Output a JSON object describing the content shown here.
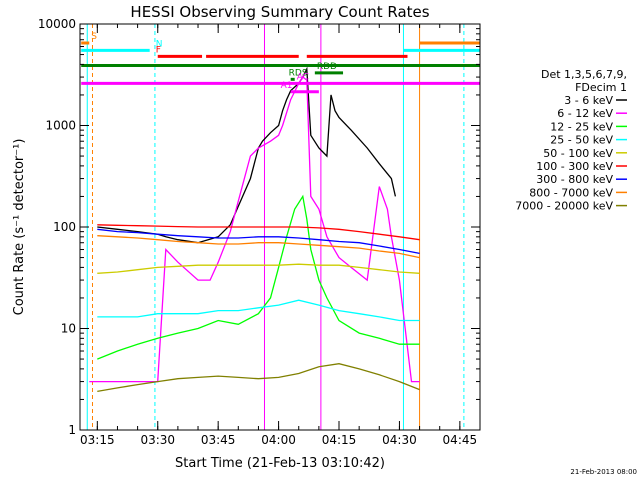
{
  "chart_data": {
    "type": "line",
    "title": "HESSI Observing Summary Count Rates",
    "xlabel": "Start Time (21-Feb-13 03:10:42)",
    "ylabel": "Count Rate (s⁻¹ detector⁻¹)",
    "ylog": true,
    "ylim": [
      1,
      10000
    ],
    "xlim_minutes": [
      190.7,
      290
    ],
    "x_ticks": [
      {
        "label": "03:15",
        "v": 195
      },
      {
        "label": "03:30",
        "v": 210
      },
      {
        "label": "03:45",
        "v": 225
      },
      {
        "label": "04:00",
        "v": 240
      },
      {
        "label": "04:15",
        "v": 255
      },
      {
        "label": "04:30",
        "v": 270
      },
      {
        "label": "04:45",
        "v": 285
      }
    ],
    "y_ticks": [
      {
        "label": "1",
        "v": 1
      },
      {
        "label": "10",
        "v": 10
      },
      {
        "label": "100",
        "v": 100
      },
      {
        "label": "1000",
        "v": 1000
      },
      {
        "label": "10000",
        "v": 10000
      }
    ],
    "legend_header": [
      "Det 1,3,5,6,7,9,",
      "FDecim 1"
    ],
    "series": [
      {
        "name": "3 - 6 keV",
        "color": "#000000",
        "x": [
          195,
          200,
          205,
          210,
          212,
          215,
          220,
          225,
          228,
          230,
          233,
          235,
          236,
          238,
          240,
          241,
          242,
          243,
          245,
          246,
          247,
          248,
          250,
          252,
          253,
          254,
          255,
          258,
          262,
          265,
          268,
          269
        ],
        "y": [
          100,
          95,
          90,
          85,
          80,
          75,
          70,
          80,
          105,
          160,
          300,
          600,
          700,
          850,
          1000,
          1400,
          1800,
          2200,
          2600,
          3000,
          3600,
          800,
          600,
          500,
          2000,
          1400,
          1200,
          900,
          600,
          420,
          300,
          200
        ]
      },
      {
        "name": "6 - 12 keV",
        "color": "#ff00ff",
        "x": [
          193,
          195,
          200,
          205,
          208,
          210,
          212,
          215,
          220,
          223,
          225,
          228,
          230,
          233,
          235,
          238,
          240,
          241,
          243,
          245,
          246,
          247,
          248,
          250,
          252,
          255,
          258,
          262,
          265,
          267,
          268,
          270,
          273,
          275
        ],
        "y": [
          3,
          3,
          3,
          3,
          3,
          3,
          60,
          45,
          30,
          30,
          45,
          90,
          180,
          500,
          600,
          700,
          800,
          1000,
          1800,
          2600,
          3000,
          2800,
          200,
          150,
          80,
          50,
          40,
          30,
          250,
          150,
          80,
          30,
          3,
          3
        ]
      },
      {
        "name": "12 - 25 keV",
        "color": "#00ff00",
        "x": [
          195,
          200,
          205,
          210,
          215,
          220,
          225,
          230,
          235,
          238,
          240,
          242,
          244,
          246,
          247,
          248,
          250,
          252,
          255,
          260,
          265,
          270,
          275
        ],
        "y": [
          5,
          6,
          7,
          8,
          9,
          10,
          12,
          11,
          14,
          20,
          40,
          80,
          150,
          200,
          120,
          60,
          30,
          20,
          12,
          9,
          8,
          7,
          7
        ]
      },
      {
        "name": "25 - 50 keV",
        "color": "#00ffff",
        "x": [
          195,
          200,
          205,
          210,
          215,
          220,
          225,
          230,
          235,
          240,
          245,
          250,
          255,
          260,
          265,
          270,
          275
        ],
        "y": [
          13,
          13,
          13,
          14,
          14,
          14,
          15,
          15,
          16,
          17,
          19,
          17,
          15,
          14,
          13,
          12,
          12
        ]
      },
      {
        "name": "50 - 100 keV",
        "color": "#cccc00",
        "x": [
          195,
          200,
          205,
          210,
          215,
          220,
          225,
          230,
          235,
          240,
          245,
          250,
          255,
          260,
          265,
          270,
          275
        ],
        "y": [
          35,
          36,
          38,
          40,
          41,
          42,
          42,
          42,
          42,
          42,
          43,
          42,
          42,
          40,
          38,
          36,
          35
        ]
      },
      {
        "name": "100 - 300 keV",
        "color": "#ff0000",
        "x": [
          195,
          200,
          205,
          210,
          215,
          220,
          225,
          230,
          235,
          240,
          245,
          250,
          255,
          260,
          265,
          270,
          275
        ],
        "y": [
          105,
          104,
          103,
          102,
          101,
          100,
          100,
          100,
          100,
          100,
          100,
          98,
          95,
          90,
          85,
          80,
          75
        ]
      },
      {
        "name": "300 - 800 keV",
        "color": "#0000ff",
        "x": [
          195,
          200,
          205,
          210,
          215,
          220,
          225,
          230,
          235,
          240,
          245,
          250,
          255,
          260,
          265,
          270,
          275
        ],
        "y": [
          95,
          90,
          88,
          85,
          82,
          80,
          78,
          78,
          80,
          80,
          78,
          75,
          72,
          70,
          65,
          60,
          55
        ]
      },
      {
        "name": "800 - 7000 keV",
        "color": "#ff8000",
        "x": [
          195,
          200,
          205,
          210,
          215,
          220,
          225,
          230,
          235,
          240,
          245,
          250,
          255,
          260,
          265,
          270,
          275
        ],
        "y": [
          82,
          80,
          78,
          75,
          72,
          70,
          68,
          68,
          70,
          70,
          68,
          66,
          64,
          62,
          58,
          55,
          50
        ]
      },
      {
        "name": "7000 - 20000 keV",
        "color": "#808000",
        "x": [
          195,
          200,
          205,
          210,
          215,
          220,
          225,
          230,
          235,
          240,
          245,
          250,
          255,
          260,
          265,
          270,
          275
        ],
        "y": [
          2.4,
          2.6,
          2.8,
          3.0,
          3.2,
          3.3,
          3.4,
          3.3,
          3.2,
          3.3,
          3.6,
          4.2,
          4.5,
          4.0,
          3.5,
          3.0,
          2.5
        ]
      }
    ],
    "flag_bars": [
      {
        "label": "S",
        "color": "#ff8000",
        "y": 6500,
        "segments": [
          [
            191,
            193
          ],
          [
            275,
            290
          ]
        ],
        "label_at": 193
      },
      {
        "label": "N",
        "color": "#00ffff",
        "y": 5500,
        "segments": [
          [
            191,
            208
          ],
          [
            271,
            290
          ]
        ],
        "label_at": 209
      },
      {
        "label": "F",
        "color": "#ff0000",
        "y": 4800,
        "segments": [
          [
            210,
            221
          ],
          [
            222,
            245
          ],
          [
            247,
            272
          ]
        ],
        "label_at": 209
      },
      {
        "label": "",
        "color": "#008000",
        "y": 3900,
        "segments": [
          [
            191,
            290
          ]
        ],
        "label_at": 0
      },
      {
        "label": "RDD",
        "color": "#008000",
        "y": 3300,
        "segments": [
          [
            249,
            256
          ]
        ],
        "label_at": 249
      },
      {
        "label": "RDS",
        "color": "#008000",
        "y": 2850,
        "segments": [
          [
            243,
            244
          ]
        ],
        "label_at": 242
      },
      {
        "label": "AC",
        "color": "#ff00ff",
        "y": 2600,
        "segments": [
          [
            191,
            290
          ]
        ],
        "label_at": 244
      },
      {
        "label": "A1",
        "color": "#ff00ff",
        "y": 2150,
        "segments": [
          [
            243,
            250
          ]
        ],
        "label_at": 240
      }
    ],
    "vlines": [
      {
        "x": 192.5,
        "color": "#00ffff",
        "dash": false
      },
      {
        "x": 193.8,
        "color": "#ff8000",
        "dash": true
      },
      {
        "x": 209.3,
        "color": "#00ffff",
        "dash": true
      },
      {
        "x": 271.0,
        "color": "#00ffff",
        "dash": false
      },
      {
        "x": 275.0,
        "color": "#ff8000",
        "dash": false
      },
      {
        "x": 286.0,
        "color": "#00ffff",
        "dash": true
      },
      {
        "x": 236.5,
        "color": "#ff00ff",
        "dash": false
      },
      {
        "x": 250.5,
        "color": "#ff00ff",
        "dash": false
      }
    ]
  },
  "footer_stamp": "21-Feb-2013 08:00"
}
